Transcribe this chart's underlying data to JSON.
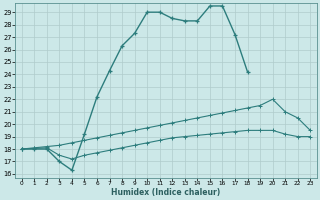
{
  "xlabel": "Humidex (Indice chaleur)",
  "bg_color": "#cce8e8",
  "grid_color": "#b0cccc",
  "line_color": "#2d7d7d",
  "xlim": [
    -0.5,
    23.5
  ],
  "ylim": [
    15.7,
    29.7
  ],
  "xticks": [
    0,
    1,
    2,
    3,
    4,
    5,
    6,
    7,
    8,
    9,
    10,
    11,
    12,
    13,
    14,
    15,
    16,
    17,
    18,
    19,
    20,
    21,
    22,
    23
  ],
  "yticks": [
    16,
    17,
    18,
    19,
    20,
    21,
    22,
    23,
    24,
    25,
    26,
    27,
    28,
    29
  ],
  "line1_x": [
    0,
    1,
    2,
    3,
    4,
    5,
    6,
    7,
    8,
    9,
    10,
    11,
    12,
    13,
    14,
    15,
    16,
    17,
    18
  ],
  "line1_y": [
    18,
    18,
    18,
    17,
    16.3,
    19.2,
    22.2,
    24.3,
    26.3,
    27.3,
    29.0,
    29.0,
    28.5,
    28.3,
    28.3,
    29.5,
    29.5,
    27.2,
    24.2
  ],
  "line2_x": [
    0,
    1,
    2,
    3,
    4,
    5,
    6,
    7,
    8,
    9,
    10,
    11,
    12,
    13,
    14,
    15,
    16,
    17,
    18,
    19,
    20,
    21,
    22,
    23
  ],
  "line2_y": [
    18,
    18.1,
    18.2,
    18.3,
    18.5,
    18.7,
    18.9,
    19.1,
    19.3,
    19.5,
    19.7,
    19.9,
    20.1,
    20.3,
    20.5,
    20.7,
    20.9,
    21.1,
    21.3,
    21.5,
    22.0,
    21.0,
    20.5,
    19.5
  ],
  "line3_x": [
    0,
    1,
    2,
    3,
    4,
    5,
    6,
    7,
    8,
    9,
    10,
    11,
    12,
    13,
    14,
    15,
    16,
    17,
    18,
    19,
    20,
    21,
    22,
    23
  ],
  "line3_y": [
    18,
    18.05,
    18.1,
    17.5,
    17.2,
    17.5,
    17.7,
    17.9,
    18.1,
    18.3,
    18.5,
    18.7,
    18.9,
    19.0,
    19.1,
    19.2,
    19.3,
    19.4,
    19.5,
    19.5,
    19.5,
    19.2,
    19.0,
    19.0
  ]
}
